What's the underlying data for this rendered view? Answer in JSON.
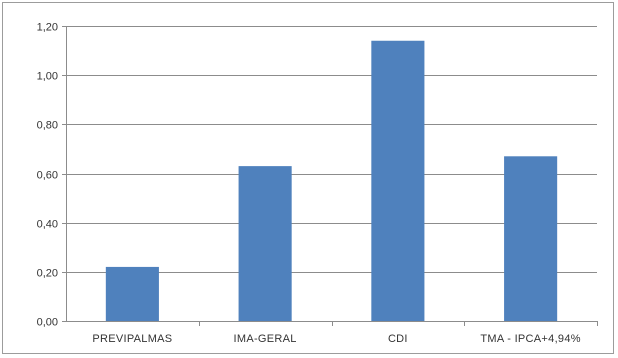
{
  "chart_data": {
    "type": "bar",
    "title": "",
    "xlabel": "",
    "ylabel": "",
    "categories": [
      "PREVIPALMAS",
      "IMA-GERAL",
      "CDI",
      "TMA - IPCA+4,94%"
    ],
    "values": [
      0.22,
      0.63,
      1.14,
      0.67
    ],
    "ylim": [
      0,
      1.2
    ],
    "yticks": [
      "0,00",
      "0,20",
      "0,40",
      "0,60",
      "0,80",
      "1,00",
      "1,20"
    ],
    "grid": true,
    "legend": "none",
    "bar_color": "#4f81bd",
    "grid_color": "#8c8c8c",
    "axis_color": "#8c8c8c"
  }
}
